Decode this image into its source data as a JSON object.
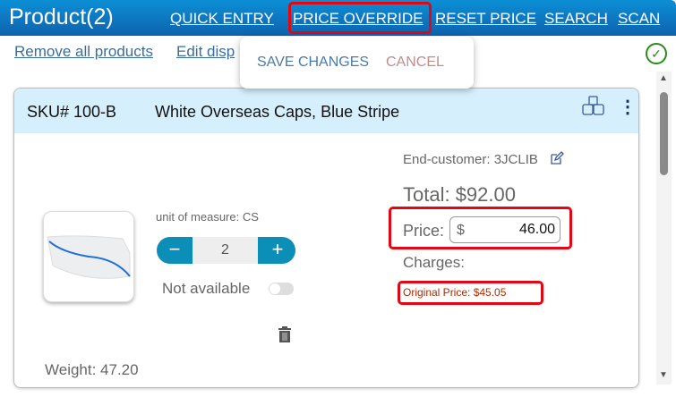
{
  "header": {
    "title": "Product(2)",
    "nav": [
      "QUICK ENTRY",
      "PRICE OVERRIDE",
      "RESET PRICE",
      "SEARCH",
      "SCAN"
    ]
  },
  "links": {
    "remove_all": "Remove all products",
    "edit_display": "Edit disp"
  },
  "popup": {
    "save": "SAVE CHANGES",
    "cancel": "CANCEL"
  },
  "product": {
    "sku": "SKU# 100-B",
    "name": "White Overseas Caps, Blue Stripe",
    "end_customer": "End-customer: 3JCLIB",
    "total": "Total: $92.00",
    "price_label": "Price:",
    "currency": "$",
    "price_value": "46.00",
    "charges": "Charges:",
    "original_price": "Original Price: $45.05",
    "uom": "unit of measure: CS",
    "quantity": "2",
    "minus": "−",
    "plus": "+",
    "not_available": "Not available",
    "not_available_on": false,
    "weight": "Weight: 47.20"
  },
  "colors": {
    "header": "#0e62ad",
    "accent": "#0b8fb8",
    "highlight": "#e30613",
    "original_price": "#b22a00"
  }
}
